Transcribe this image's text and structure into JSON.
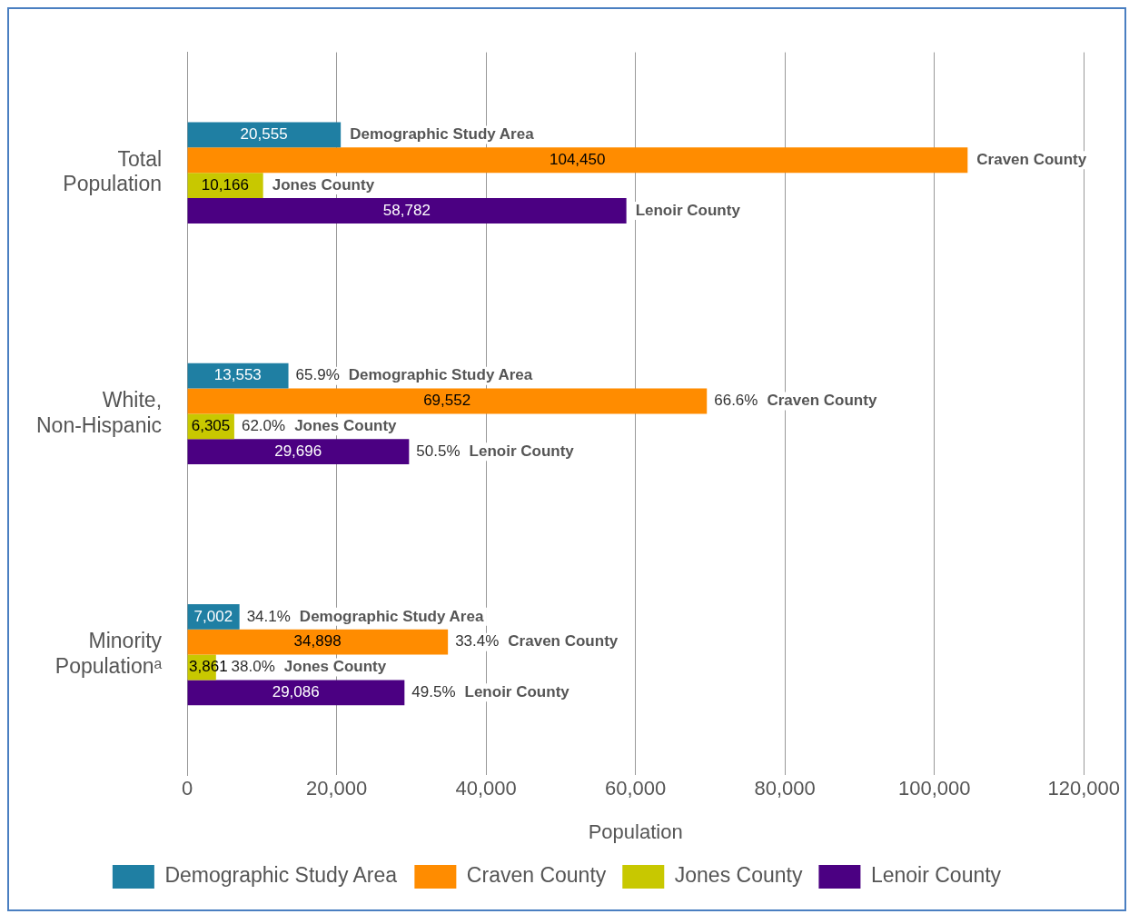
{
  "chart_data": {
    "type": "bar",
    "orientation": "horizontal",
    "xlabel": "Population",
    "categories": [
      "Total Population",
      "White, Non-Hispanic",
      "Minority Populationᵃ"
    ],
    "series": [
      {
        "name": "Demographic Study Area",
        "color": "#1f7fa3",
        "values": [
          20555,
          13553,
          7002
        ],
        "value_labels": [
          "20,555",
          "13,553",
          "7,002"
        ]
      },
      {
        "name": "Craven County",
        "color": "#ff8c00",
        "values": [
          104450,
          69552,
          34898
        ],
        "value_labels": [
          "104,450",
          "69,552",
          "34,898"
        ]
      },
      {
        "name": "Jones County",
        "color": "#c8c800",
        "values": [
          10166,
          6305,
          3861
        ],
        "value_labels": [
          "10,166",
          "6,305",
          "3,861"
        ]
      },
      {
        "name": "Lenoir County",
        "color": "#4b0082",
        "values": [
          58782,
          29696,
          29086
        ],
        "value_labels": [
          "58,782",
          "29,696",
          "29,086"
        ]
      }
    ],
    "annotations": [
      {
        "text": "65.9%",
        "x": 13553,
        "y": "White, Non-Hispanic"
      },
      {
        "text": "66.6%",
        "x": 69552,
        "y": "White, Non-Hispanic"
      },
      {
        "text": "62.0%",
        "x": 6305,
        "y": "White, Non-Hispanic"
      },
      {
        "text": "50.5%",
        "x": 29696,
        "y": "White, Non-Hispanic"
      },
      {
        "text": "34.1%",
        "x": 7002,
        "y": "Minority Populationᵃ"
      },
      {
        "text": "33.4%",
        "x": 34898,
        "y": "Minority Populationᵃ"
      },
      {
        "text": "38.0%",
        "x": 3861,
        "y": "Minority Populationᵃ"
      },
      {
        "text": "49.5%",
        "x": 29086,
        "y": "Minority Populationᵃ"
      }
    ],
    "xlim": [
      0,
      120000
    ],
    "xticks": [
      0,
      {
        "value": 20000,
        "label": "20,000"
      },
      {
        "value": 40000,
        "label": "40,000"
      },
      {
        "value": 60000,
        "label": "60,000"
      },
      {
        "value": 80000,
        "label": "80,000"
      },
      {
        "value": 100000,
        "label": "100,000"
      },
      {
        "value": 120000,
        "label": "120,000"
      }
    ],
    "grid": "x",
    "legend": "bottom"
  }
}
